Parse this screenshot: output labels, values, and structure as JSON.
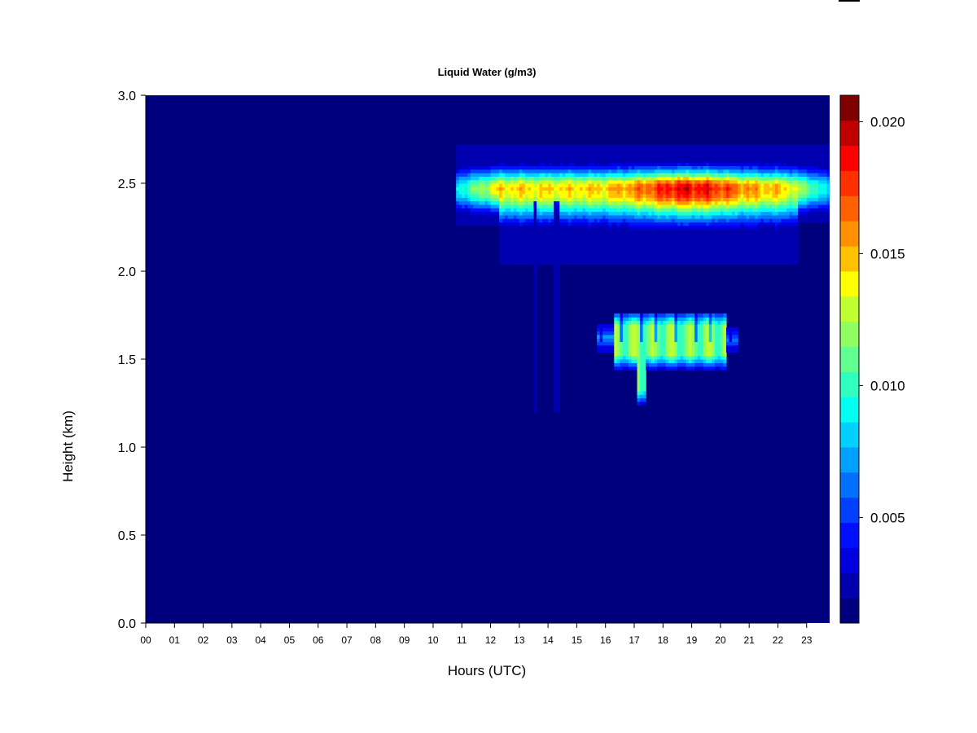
{
  "chart_data": {
    "type": "heatmap",
    "title": "Liquid Water (g/m3)",
    "xlabel": "Hours (UTC)",
    "ylabel": "Height (km)",
    "xlim": [
      0,
      23.8
    ],
    "ylim": [
      0,
      3.0
    ],
    "x_ticks": [
      "00",
      "01",
      "02",
      "03",
      "04",
      "05",
      "06",
      "07",
      "08",
      "09",
      "10",
      "11",
      "12",
      "13",
      "14",
      "15",
      "16",
      "17",
      "18",
      "19",
      "20",
      "21",
      "22",
      "23"
    ],
    "y_ticks": [
      "0.0",
      "0.5",
      "1.0",
      "1.5",
      "2.0",
      "2.5",
      "3.0"
    ],
    "colorbar": {
      "range": [
        0.001,
        0.021
      ],
      "ticks": [
        "0.005",
        "0.010",
        "0.015",
        "0.020"
      ],
      "colors": [
        "#00007F",
        "#0000AF",
        "#0000DF",
        "#0010FF",
        "#0040FF",
        "#0070FF",
        "#00A0FF",
        "#00D0FF",
        "#00FFF0",
        "#30FFC0",
        "#60FF90",
        "#90FF60",
        "#C0FF30",
        "#FFFF00",
        "#FFC000",
        "#FF9000",
        "#FF6000",
        "#FF3000",
        "#FF0000",
        "#C00000",
        "#7F0000"
      ]
    },
    "features": [
      {
        "region": "upper cloud layer",
        "x_range": [
          10.8,
          23.8
        ],
        "y_range": [
          2.05,
          2.72
        ],
        "peak": 0.0205,
        "peak_x": 18.0,
        "peak_y": 2.45
      },
      {
        "region": "lower cloud layer",
        "x_range": [
          15.7,
          20.6
        ],
        "y_range": [
          1.25,
          1.77
        ],
        "peak": 0.013,
        "peak_x": 17.5,
        "peak_y": 1.65
      }
    ]
  }
}
